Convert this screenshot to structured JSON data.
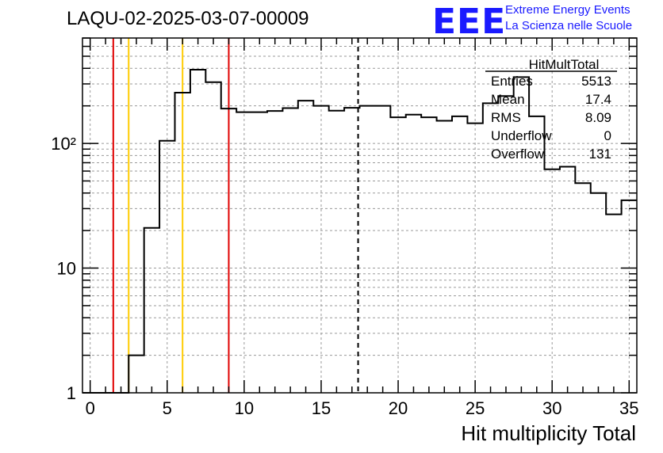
{
  "title": "LAQU-02-2025-03-07-00009",
  "logo": {
    "mark": "EEE",
    "line1": "Extreme Energy Events",
    "line2": "La Scienza nelle Scuole",
    "color": "#1a1aff"
  },
  "stats": {
    "title": "HitMultTotal",
    "rows": [
      {
        "label": "Entries",
        "value": "5513"
      },
      {
        "label": "Mean",
        "value": "17.4"
      },
      {
        "label": "RMS",
        "value": "8.09"
      },
      {
        "label": "Underflow",
        "value": "0"
      },
      {
        "label": "Overflow",
        "value": "131"
      }
    ]
  },
  "chart_data": {
    "type": "bar",
    "style": "step-histogram",
    "xlabel": "Hit multiplicity Total",
    "ylabel": "",
    "xlim": [
      -0.5,
      35.5
    ],
    "ylim": [
      1,
      700
    ],
    "yscale": "log",
    "grid": true,
    "x_ticks": [
      0,
      5,
      10,
      15,
      20,
      25,
      30,
      35
    ],
    "y_ticks": [
      {
        "value": 1,
        "label": "1"
      },
      {
        "value": 10,
        "label": "10"
      },
      {
        "value": 100,
        "label": "10²"
      }
    ],
    "bin_width": 1,
    "bin_start": -0.5,
    "values": [
      0,
      0,
      0,
      2,
      21,
      105,
      255,
      390,
      310,
      190,
      178,
      178,
      182,
      192,
      220,
      200,
      183,
      193,
      200,
      200,
      162,
      170,
      162,
      152,
      165,
      145,
      210,
      240,
      340,
      165,
      62,
      65,
      48,
      40,
      27,
      35
    ],
    "vertical_lines": [
      {
        "x": 1.5,
        "color": "#e00000",
        "style": "solid"
      },
      {
        "x": 2.5,
        "color": "#ffcc00",
        "style": "solid"
      },
      {
        "x": 6,
        "color": "#ffcc00",
        "style": "solid"
      },
      {
        "x": 9,
        "color": "#e00000",
        "style": "solid"
      },
      {
        "x": 17.4,
        "color": "#000000",
        "style": "dashed"
      }
    ]
  }
}
